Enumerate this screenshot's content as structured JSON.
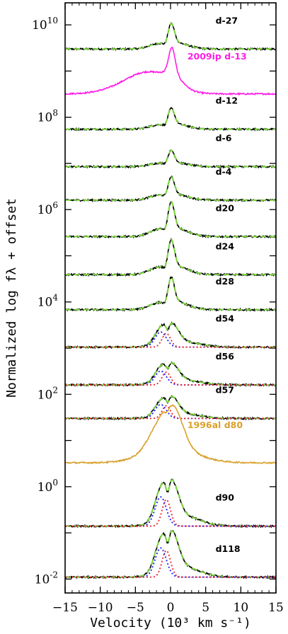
{
  "chart_data": {
    "type": "line",
    "title": "",
    "xlabel": "Velocity (10³ km s⁻¹)",
    "ylabel": "Normalized log fλ + offset",
    "xlim": [
      -15,
      15
    ],
    "x_ticks": [
      -15,
      -10,
      -5,
      0,
      5,
      10,
      15
    ],
    "x_tick_labels": [
      "−15",
      "−10",
      "−5",
      "0",
      "5",
      "10",
      "15"
    ],
    "y_scale": "log",
    "ylim": [
      0.005,
      30000000000
    ],
    "y_tick_labels": [
      {
        "value": 10000000000.0,
        "base": "10",
        "exp": "10"
      },
      {
        "value": 100000000.0,
        "base": "10",
        "exp": "8"
      },
      {
        "value": 1000000.0,
        "base": "10",
        "exp": "6"
      },
      {
        "value": 10000.0,
        "base": "10",
        "exp": "4"
      },
      {
        "value": 100.0,
        "base": "10",
        "exp": "2"
      },
      {
        "value": 1,
        "base": "10",
        "exp": "0"
      },
      {
        "value": 0.01,
        "base": "10",
        "exp": "-2"
      }
    ],
    "colors": {
      "observed": "#000000",
      "model_fit": "#7ad63a",
      "component_a": "#1a1aff",
      "component_b": "#e8202a",
      "sn2009ip": "#ff1ee6",
      "sn1996al": "#d9a12c"
    },
    "series": [
      {
        "name": "d-27",
        "baseline": 3000000000.0,
        "color": "observed",
        "peak_log_height": 0.55,
        "fit": true,
        "components": false
      },
      {
        "name": "2009ip d-13",
        "baseline": 320000000.0,
        "color": "sn2009ip",
        "peak_log_height": 1.0,
        "fit": false,
        "components": false
      },
      {
        "name": "d-12",
        "baseline": 55000000.0,
        "color": "observed",
        "peak_log_height": 0.45,
        "fit": true,
        "components": false
      },
      {
        "name": "d-6",
        "baseline": 8500000.0,
        "color": "observed",
        "peak_log_height": 0.35,
        "fit": true,
        "components": false
      },
      {
        "name": "d-4",
        "baseline": 1600000.0,
        "color": "observed",
        "peak_log_height": 0.5,
        "fit": true,
        "components": false
      },
      {
        "name": "d20",
        "baseline": 260000.0,
        "color": "observed",
        "peak_log_height": 0.75,
        "fit": true,
        "components": false
      },
      {
        "name": "d24",
        "baseline": 39000.0,
        "color": "observed",
        "peak_log_height": 0.75,
        "fit": true,
        "components": false
      },
      {
        "name": "d28",
        "baseline": 6800.0,
        "color": "observed",
        "peak_log_height": 0.7,
        "fit": true,
        "components": false
      },
      {
        "name": "d54",
        "baseline": 1050.0,
        "color": "observed",
        "peak_log_height": 0.6,
        "fit": true,
        "components": true
      },
      {
        "name": "d56",
        "baseline": 160.0,
        "color": "observed",
        "peak_log_height": 0.55,
        "fit": true,
        "components": true
      },
      {
        "name": "d57",
        "baseline": 30,
        "color": "observed",
        "peak_log_height": 0.55,
        "fit": true,
        "components": true
      },
      {
        "name": "1996al d80",
        "baseline": 3.3,
        "color": "sn1996al",
        "peak_log_height": 0.95,
        "fit": false,
        "components": false
      },
      {
        "name": "d90",
        "baseline": 0.14,
        "color": "observed",
        "peak_log_height": 1.15,
        "fit": true,
        "components": true
      },
      {
        "name": "d118",
        "baseline": 0.011,
        "color": "observed",
        "peak_log_height": 1.15,
        "fit": true,
        "components": true
      }
    ],
    "grid": false,
    "legend": "none"
  }
}
